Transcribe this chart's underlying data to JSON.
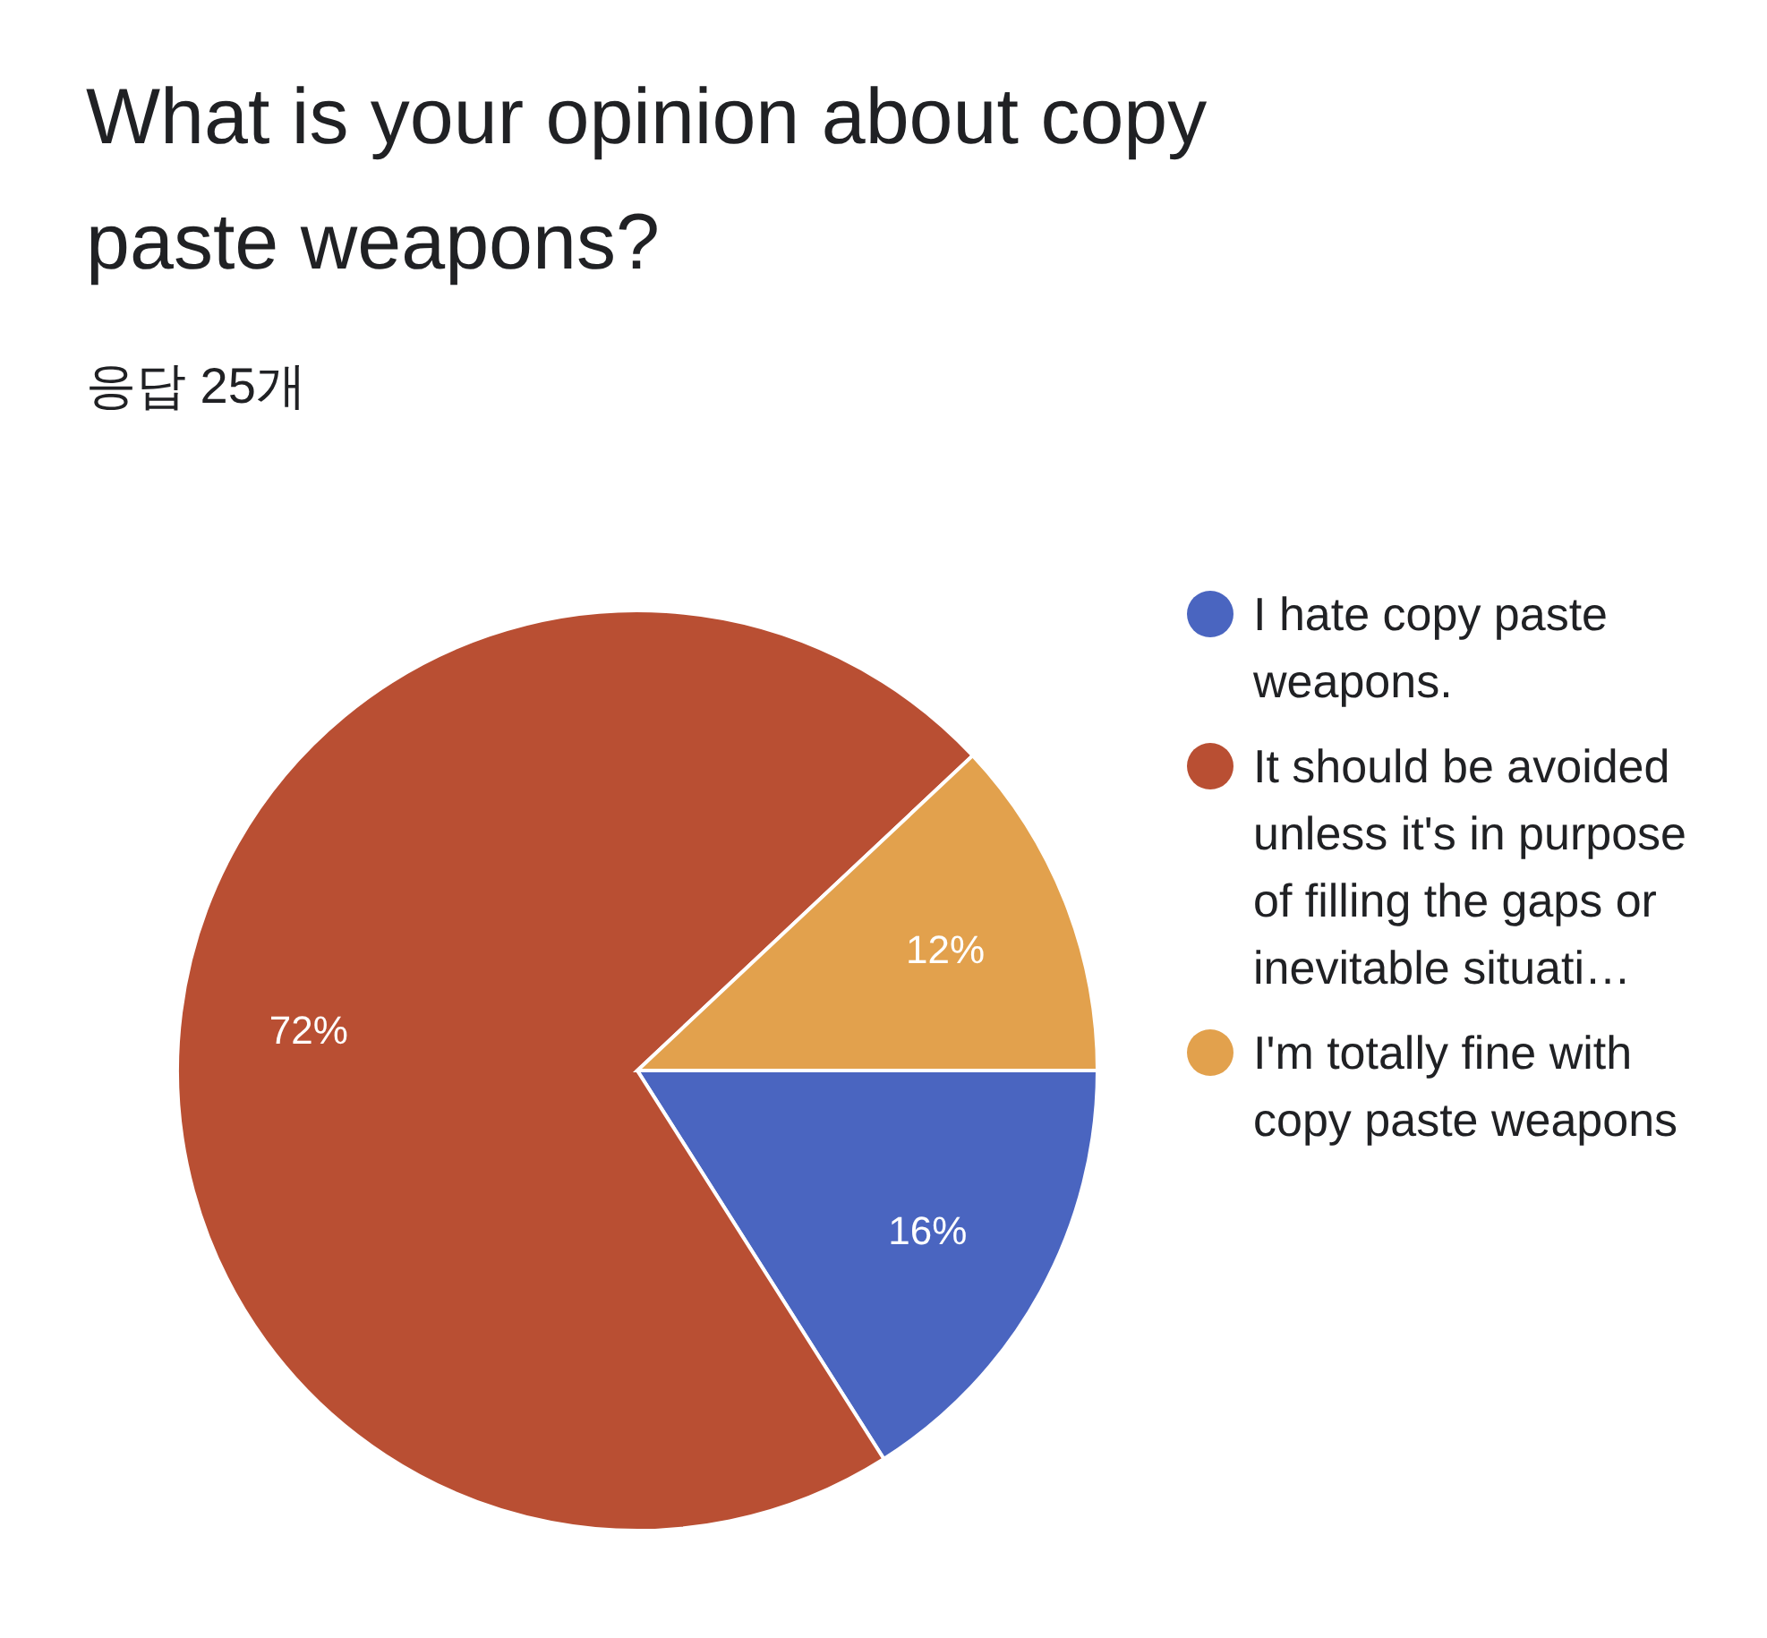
{
  "chart_data": {
    "type": "pie",
    "title": "What is your opinion about copy paste weapons?",
    "subtitle": "응답 25개",
    "categories": [
      "I hate copy paste weapons.",
      "It should be avoided unless it's in purpose of filling the gaps or inevitable situati…",
      "I'm totally fine with copy paste weapons"
    ],
    "values": [
      16,
      72,
      12
    ],
    "colors": [
      "#4a65c0",
      "#b94f33",
      "#e2a14d"
    ],
    "value_labels": [
      "16%",
      "72%",
      "12%"
    ],
    "legend": "right"
  }
}
